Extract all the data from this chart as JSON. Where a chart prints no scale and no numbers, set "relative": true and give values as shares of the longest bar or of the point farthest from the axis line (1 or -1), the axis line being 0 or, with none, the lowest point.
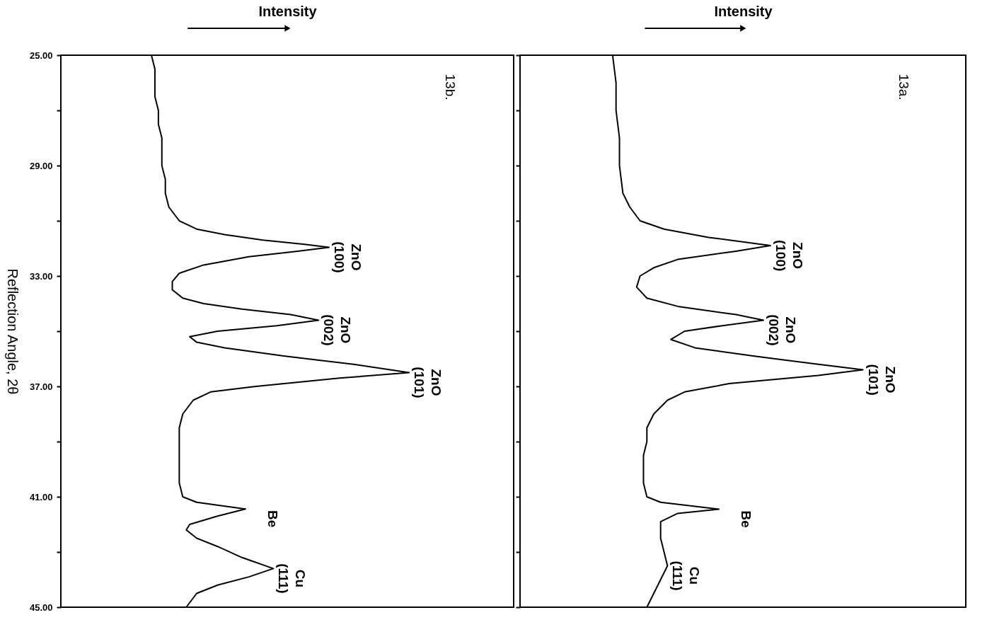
{
  "chart_data": [
    {
      "type": "line",
      "orientation": "horizontal",
      "relative": true,
      "ylabel": "Reflection Angle, 2θ",
      "xlabel": "Intensity",
      "tick_labels": "y",
      "ylim": [
        45,
        25
      ],
      "yticks": [
        {
          "value": 25,
          "label": "25.00"
        },
        {
          "value": 27,
          "label": null
        },
        {
          "value": 29,
          "label": "29.00"
        },
        {
          "value": 31,
          "label": null
        },
        {
          "value": 33,
          "label": "33.00"
        },
        {
          "value": 35,
          "label": null
        },
        {
          "value": 37,
          "label": "37.00"
        },
        {
          "value": 39,
          "label": null
        },
        {
          "value": 41,
          "label": "41.00"
        },
        {
          "value": 43,
          "label": null
        },
        {
          "value": 45,
          "label": "45.00"
        }
      ],
      "series": [
        {
          "color": "#000000",
          "x": [
            25.0,
            25.5,
            26.0,
            26.5,
            27.0,
            27.5,
            28.0,
            28.5,
            29.0,
            29.5,
            30.0,
            30.5,
            31.0,
            31.3,
            31.5,
            31.7,
            31.85,
            31.96,
            32.1,
            32.3,
            32.6,
            32.9,
            33.2,
            33.5,
            33.8,
            34.0,
            34.2,
            34.4,
            34.6,
            34.8,
            35.0,
            35.2,
            35.4,
            35.6,
            35.9,
            36.2,
            36.5,
            36.7,
            37.0,
            37.2,
            37.5,
            38.0,
            38.5,
            39.0,
            39.5,
            40.0,
            40.5,
            41.0,
            41.2,
            41.44,
            41.7,
            42.0,
            42.2,
            42.5,
            42.8,
            43.2,
            43.6,
            43.9,
            44.2,
            44.5,
            45.0
          ],
          "values": [
            0.26,
            0.27,
            0.27,
            0.27,
            0.28,
            0.28,
            0.29,
            0.29,
            0.29,
            0.3,
            0.3,
            0.31,
            0.34,
            0.39,
            0.47,
            0.58,
            0.7,
            0.77,
            0.68,
            0.54,
            0.41,
            0.34,
            0.32,
            0.32,
            0.35,
            0.41,
            0.52,
            0.66,
            0.74,
            0.62,
            0.45,
            0.37,
            0.39,
            0.47,
            0.64,
            0.84,
            1,
            0.8,
            0.56,
            0.43,
            0.38,
            0.35,
            0.34,
            0.34,
            0.34,
            0.34,
            0.34,
            0.35,
            0.39,
            0.53,
            0.45,
            0.37,
            0.36,
            0.39,
            0.45,
            0.52,
            0.61,
            0.54,
            0.45,
            0.39,
            0.36
          ]
        }
      ],
      "annotations": [
        "13b.",
        {
          "text": "ZnO (100)",
          "y": 31.96,
          "x": 0.77
        },
        {
          "text": "ZnO (002)",
          "y": 34.6,
          "x": 0.74
        },
        {
          "text": "ZnO (101)",
          "y": 36.5,
          "x": 1
        },
        {
          "text": "Be",
          "y": 41.44,
          "x": 0.53
        },
        {
          "text": "Cu (111)",
          "y": 43.6,
          "x": 0.61
        }
      ]
    },
    {
      "type": "line",
      "orientation": "horizontal",
      "relative": true,
      "xlabel": "Intensity",
      "tick_labels": false,
      "ylim": [
        45,
        25
      ],
      "yticks": [
        {
          "value": 25,
          "label": null
        },
        {
          "value": 27,
          "label": null
        },
        {
          "value": 29,
          "label": null
        },
        {
          "value": 31,
          "label": null
        },
        {
          "value": 33,
          "label": null
        },
        {
          "value": 35,
          "label": null
        },
        {
          "value": 37,
          "label": null
        },
        {
          "value": 39,
          "label": null
        },
        {
          "value": 41,
          "label": null
        },
        {
          "value": 43,
          "label": null
        },
        {
          "value": 45,
          "label": null
        }
      ],
      "series": [
        {
          "color": "#000000",
          "x": [
            25.0,
            26.0,
            27.0,
            28.0,
            29.0,
            30.0,
            30.5,
            31.0,
            31.3,
            31.6,
            31.9,
            32.1,
            32.4,
            32.7,
            33.0,
            33.4,
            33.8,
            34.1,
            34.4,
            34.6,
            34.8,
            35.0,
            35.3,
            35.6,
            35.9,
            36.2,
            36.4,
            36.6,
            36.9,
            37.2,
            37.5,
            38.0,
            38.5,
            39.0,
            39.5,
            40.0,
            40.5,
            41.0,
            41.2,
            41.3,
            41.45,
            41.6,
            41.9,
            42.5,
            43.0,
            43.5,
            44.0,
            44.5,
            45.0
          ],
          "values": [
            0.27,
            0.28,
            0.28,
            0.29,
            0.29,
            0.3,
            0.32,
            0.35,
            0.42,
            0.55,
            0.73,
            0.63,
            0.46,
            0.39,
            0.35,
            0.34,
            0.37,
            0.46,
            0.63,
            0.71,
            0.59,
            0.48,
            0.44,
            0.51,
            0.68,
            0.87,
            1,
            0.87,
            0.61,
            0.48,
            0.43,
            0.39,
            0.37,
            0.37,
            0.36,
            0.36,
            0.36,
            0.37,
            0.41,
            0.48,
            0.58,
            0.46,
            0.41,
            0.41,
            0.42,
            0.43,
            0.41,
            0.39,
            0.37
          ]
        }
      ],
      "annotations": [
        "13a.",
        {
          "text": "ZnO (100)",
          "y": 31.9,
          "x": 0.73
        },
        {
          "text": "ZnO (002)",
          "y": 34.6,
          "x": 0.71
        },
        {
          "text": "ZnO (101)",
          "y": 36.4,
          "x": 1
        },
        {
          "text": "Be",
          "y": 41.45,
          "x": 0.58
        },
        {
          "text": "Cu (111)",
          "y": 43.5,
          "x": 0.43
        }
      ]
    }
  ]
}
